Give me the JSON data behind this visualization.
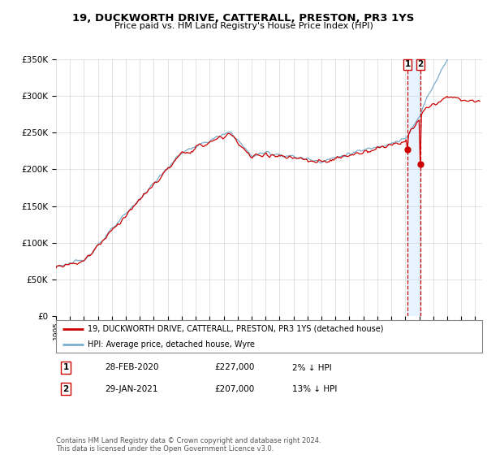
{
  "title": "19, DUCKWORTH DRIVE, CATTERALL, PRESTON, PR3 1YS",
  "subtitle": "Price paid vs. HM Land Registry's House Price Index (HPI)",
  "ylim": [
    0,
    350000
  ],
  "xlim_start": 1995.0,
  "xlim_end": 2025.5,
  "red_line_color": "#cc0000",
  "blue_line_color": "#7aadcc",
  "dashed_line_color": "#cc0000",
  "shade_color": "#ddeeff",
  "marker1_date": 2020.17,
  "marker1_value": 227000,
  "marker2_date": 2021.08,
  "marker2_value": 207000,
  "legend_label_red": "19, DUCKWORTH DRIVE, CATTERALL, PRESTON, PR3 1YS (detached house)",
  "legend_label_blue": "HPI: Average price, detached house, Wyre",
  "transaction1_label": "1",
  "transaction1_date": "28-FEB-2020",
  "transaction1_price": "£227,000",
  "transaction1_hpi": "2% ↓ HPI",
  "transaction2_label": "2",
  "transaction2_date": "29-JAN-2021",
  "transaction2_price": "£207,000",
  "transaction2_hpi": "13% ↓ HPI",
  "footer": "Contains HM Land Registry data © Crown copyright and database right 2024.\nThis data is licensed under the Open Government Licence v3.0.",
  "bg_color": "#ffffff",
  "grid_color": "#cccccc",
  "xticks": [
    1995,
    1996,
    1997,
    1998,
    1999,
    2000,
    2001,
    2002,
    2003,
    2004,
    2005,
    2006,
    2007,
    2008,
    2009,
    2010,
    2011,
    2012,
    2013,
    2014,
    2015,
    2016,
    2017,
    2018,
    2019,
    2020,
    2021,
    2022,
    2023,
    2024,
    2025
  ]
}
